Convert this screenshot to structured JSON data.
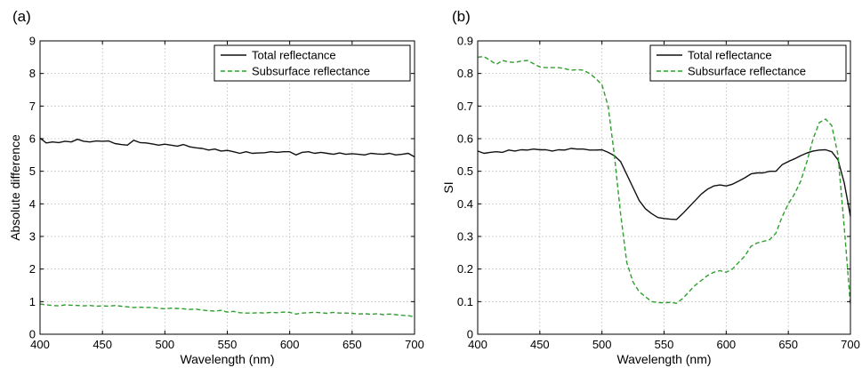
{
  "colors": {
    "total": "#111111",
    "subsurface": "#2ca02c"
  },
  "chart_data": [
    {
      "type": "line",
      "panel_label": "(a)",
      "title": "",
      "xlabel": "Wavelength (nm)",
      "ylabel": "Absolute difference",
      "xlim": [
        400,
        700
      ],
      "ylim": [
        0,
        9
      ],
      "xticks": [
        400,
        450,
        500,
        550,
        600,
        650,
        700
      ],
      "yticks": [
        0,
        1,
        2,
        3,
        4,
        5,
        6,
        7,
        8,
        9
      ],
      "grid": true,
      "legend_position": "top-right",
      "x": [
        400,
        405,
        410,
        415,
        420,
        425,
        430,
        435,
        440,
        445,
        450,
        455,
        460,
        465,
        470,
        475,
        480,
        485,
        490,
        495,
        500,
        505,
        510,
        515,
        520,
        525,
        530,
        535,
        540,
        545,
        550,
        555,
        560,
        565,
        570,
        575,
        580,
        585,
        590,
        595,
        600,
        605,
        610,
        615,
        620,
        625,
        630,
        635,
        640,
        645,
        650,
        655,
        660,
        665,
        670,
        675,
        680,
        685,
        690,
        695,
        700
      ],
      "series": [
        {
          "name": "Total reflectance",
          "style": "solid",
          "color": "#111111",
          "values": [
            6.02,
            5.87,
            5.9,
            5.88,
            5.92,
            5.9,
            5.98,
            5.92,
            5.9,
            5.93,
            5.92,
            5.93,
            5.85,
            5.82,
            5.8,
            5.95,
            5.88,
            5.87,
            5.84,
            5.8,
            5.83,
            5.8,
            5.77,
            5.82,
            5.75,
            5.72,
            5.7,
            5.65,
            5.68,
            5.62,
            5.64,
            5.6,
            5.55,
            5.6,
            5.55,
            5.56,
            5.57,
            5.6,
            5.58,
            5.6,
            5.6,
            5.5,
            5.58,
            5.6,
            5.55,
            5.58,
            5.55,
            5.52,
            5.56,
            5.52,
            5.54,
            5.52,
            5.5,
            5.55,
            5.53,
            5.52,
            5.55,
            5.5,
            5.52,
            5.55,
            5.44
          ]
        },
        {
          "name": "Subsurface reflectance",
          "style": "dashed",
          "color": "#2ca02c",
          "values": [
            0.93,
            0.9,
            0.88,
            0.87,
            0.9,
            0.89,
            0.88,
            0.87,
            0.88,
            0.86,
            0.87,
            0.86,
            0.88,
            0.86,
            0.84,
            0.82,
            0.83,
            0.82,
            0.82,
            0.8,
            0.78,
            0.8,
            0.79,
            0.78,
            0.76,
            0.77,
            0.74,
            0.72,
            0.71,
            0.73,
            0.68,
            0.7,
            0.66,
            0.65,
            0.65,
            0.66,
            0.65,
            0.67,
            0.66,
            0.68,
            0.67,
            0.62,
            0.65,
            0.66,
            0.67,
            0.66,
            0.64,
            0.67,
            0.65,
            0.65,
            0.64,
            0.62,
            0.63,
            0.61,
            0.63,
            0.6,
            0.62,
            0.6,
            0.58,
            0.57,
            0.53
          ]
        }
      ]
    },
    {
      "type": "line",
      "panel_label": "(b)",
      "title": "",
      "xlabel": "Wavelength (nm)",
      "ylabel": "SI",
      "xlim": [
        400,
        700
      ],
      "ylim": [
        0,
        0.9
      ],
      "xticks": [
        400,
        450,
        500,
        550,
        600,
        650,
        700
      ],
      "yticks": [
        0,
        0.1,
        0.2,
        0.3,
        0.4,
        0.5,
        0.6,
        0.7,
        0.8,
        0.9
      ],
      "grid": true,
      "legend_position": "top-right",
      "x": [
        400,
        405,
        410,
        415,
        420,
        425,
        430,
        435,
        440,
        445,
        450,
        455,
        460,
        465,
        470,
        475,
        480,
        485,
        490,
        495,
        500,
        505,
        510,
        515,
        520,
        525,
        530,
        535,
        540,
        545,
        550,
        555,
        560,
        565,
        570,
        575,
        580,
        585,
        590,
        595,
        600,
        605,
        610,
        615,
        620,
        625,
        630,
        635,
        640,
        645,
        650,
        655,
        660,
        665,
        670,
        675,
        680,
        685,
        690,
        695,
        700
      ],
      "series": [
        {
          "name": "Total reflectance",
          "style": "solid",
          "color": "#111111",
          "values": [
            0.562,
            0.555,
            0.558,
            0.56,
            0.558,
            0.565,
            0.562,
            0.566,
            0.565,
            0.568,
            0.566,
            0.566,
            0.562,
            0.566,
            0.565,
            0.57,
            0.568,
            0.568,
            0.565,
            0.565,
            0.566,
            0.558,
            0.548,
            0.53,
            0.49,
            0.45,
            0.41,
            0.385,
            0.37,
            0.358,
            0.355,
            0.353,
            0.352,
            0.37,
            0.39,
            0.41,
            0.43,
            0.445,
            0.455,
            0.458,
            0.455,
            0.46,
            0.47,
            0.48,
            0.492,
            0.495,
            0.495,
            0.5,
            0.5,
            0.52,
            0.53,
            0.538,
            0.548,
            0.556,
            0.562,
            0.565,
            0.566,
            0.56,
            0.535,
            0.465,
            0.362
          ]
        },
        {
          "name": "Subsurface reflectance",
          "style": "dashed",
          "color": "#2ca02c",
          "values": [
            0.85,
            0.852,
            0.84,
            0.828,
            0.84,
            0.835,
            0.834,
            0.838,
            0.84,
            0.83,
            0.82,
            0.818,
            0.818,
            0.818,
            0.815,
            0.81,
            0.812,
            0.81,
            0.8,
            0.785,
            0.765,
            0.7,
            0.55,
            0.37,
            0.22,
            0.16,
            0.13,
            0.115,
            0.1,
            0.097,
            0.096,
            0.098,
            0.095,
            0.11,
            0.13,
            0.15,
            0.165,
            0.18,
            0.19,
            0.195,
            0.19,
            0.2,
            0.22,
            0.24,
            0.27,
            0.28,
            0.285,
            0.29,
            0.31,
            0.36,
            0.4,
            0.43,
            0.47,
            0.53,
            0.6,
            0.65,
            0.66,
            0.64,
            0.55,
            0.33,
            0.09
          ]
        }
      ]
    }
  ]
}
